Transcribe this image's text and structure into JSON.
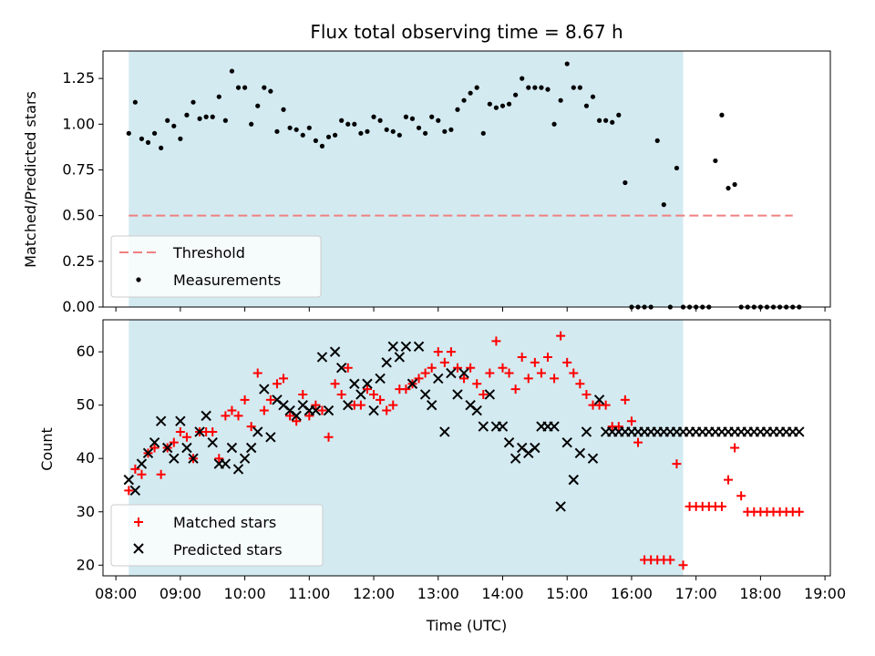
{
  "chart_data": [
    {
      "type": "scatter",
      "title": "Flux total observing time = 8.67 h",
      "ylabel": "Matched/Predicted stars",
      "xlim": [
        "07:48",
        "19:05"
      ],
      "ylim": [
        0,
        1.4
      ],
      "yticks": [
        0,
        0.25,
        0.5,
        0.75,
        1.0,
        1.25
      ],
      "ytick_labels": [
        "0.00",
        "0.25",
        "0.50",
        "0.75",
        "1.00",
        "1.25"
      ],
      "shaded_interval": [
        "08:12",
        "16:48"
      ],
      "shade_color": "#d3eaf1",
      "legend_position": "lower-left",
      "series": [
        {
          "name": "Threshold",
          "kind": "dashed-line",
          "color": "#f08080",
          "x": [
            "08:12",
            "18:30"
          ],
          "y": [
            0.5,
            0.5
          ]
        },
        {
          "name": "Measurements",
          "kind": "dot",
          "color": "#000000",
          "x": [
            "08:12",
            "08:18",
            "08:24",
            "08:30",
            "08:36",
            "08:42",
            "08:48",
            "08:54",
            "09:00",
            "09:06",
            "09:12",
            "09:18",
            "09:24",
            "09:30",
            "09:36",
            "09:42",
            "09:48",
            "09:54",
            "10:00",
            "10:06",
            "10:12",
            "10:18",
            "10:24",
            "10:30",
            "10:36",
            "10:42",
            "10:48",
            "10:54",
            "11:00",
            "11:06",
            "11:12",
            "11:18",
            "11:24",
            "11:30",
            "11:36",
            "11:42",
            "11:48",
            "11:54",
            "12:00",
            "12:06",
            "12:12",
            "12:18",
            "12:24",
            "12:30",
            "12:36",
            "12:42",
            "12:48",
            "12:54",
            "13:00",
            "13:06",
            "13:12",
            "13:18",
            "13:24",
            "13:30",
            "13:36",
            "13:42",
            "13:48",
            "13:54",
            "14:00",
            "14:06",
            "14:12",
            "14:18",
            "14:24",
            "14:30",
            "14:36",
            "14:42",
            "14:48",
            "14:54",
            "15:00",
            "15:06",
            "15:12",
            "15:18",
            "15:24",
            "15:30",
            "15:36",
            "15:42",
            "15:48",
            "15:54",
            "16:00",
            "16:06",
            "16:12",
            "16:18",
            "16:24",
            "16:30",
            "16:36",
            "16:42",
            "16:48",
            "16:54",
            "17:00",
            "17:06",
            "17:12",
            "17:18",
            "17:24",
            "17:30",
            "17:36",
            "17:42",
            "17:48",
            "17:54",
            "18:00",
            "18:06",
            "18:12",
            "18:18",
            "18:24",
            "18:30",
            "18:36"
          ],
          "y": [
            0.95,
            1.12,
            0.92,
            0.9,
            0.95,
            0.87,
            1.02,
            0.99,
            0.92,
            1.05,
            1.12,
            1.03,
            1.04,
            1.04,
            1.15,
            1.02,
            1.29,
            1.2,
            1.2,
            1.0,
            1.1,
            1.2,
            1.18,
            0.96,
            1.08,
            0.98,
            0.97,
            0.94,
            0.98,
            0.91,
            0.88,
            0.93,
            0.94,
            1.02,
            1.0,
            1.0,
            0.95,
            0.96,
            1.04,
            1.02,
            0.97,
            0.96,
            0.94,
            1.04,
            1.03,
            0.98,
            0.95,
            1.04,
            1.02,
            0.96,
            0.97,
            1.08,
            1.13,
            1.17,
            1.2,
            0.95,
            1.11,
            1.09,
            1.1,
            1.11,
            1.16,
            1.25,
            1.2,
            1.2,
            1.2,
            1.19,
            1.0,
            1.13,
            1.33,
            1.2,
            1.2,
            1.1,
            1.15,
            1.02,
            1.02,
            1.01,
            1.05,
            0.68,
            0.0,
            0.0,
            0.0,
            0.0,
            0.91,
            0.56,
            0.0,
            0.76,
            0.0,
            0.0,
            0.0,
            0.0,
            0.0,
            0.8,
            1.05,
            0.65,
            0.67,
            0.0,
            0.0,
            0.0,
            0.0,
            0.0,
            0.0,
            0.0,
            0.0,
            0.0,
            0.0
          ]
        }
      ]
    },
    {
      "type": "scatter",
      "xlabel": "Time (UTC)",
      "ylabel": "Count",
      "xlim": [
        "07:48",
        "19:05"
      ],
      "ylim": [
        18,
        66
      ],
      "yticks": [
        20,
        30,
        40,
        50,
        60
      ],
      "xtick_labels": [
        "08:00",
        "09:00",
        "10:00",
        "11:00",
        "12:00",
        "13:00",
        "14:00",
        "15:00",
        "16:00",
        "17:00",
        "18:00",
        "19:00"
      ],
      "shaded_interval": [
        "08:12",
        "16:48"
      ],
      "shade_color": "#d3eaf1",
      "legend_position": "lower-left",
      "series": [
        {
          "name": "Matched stars",
          "kind": "plus",
          "color": "#ff0000",
          "x": [
            "08:12",
            "08:18",
            "08:24",
            "08:30",
            "08:36",
            "08:42",
            "08:48",
            "08:54",
            "09:00",
            "09:06",
            "09:12",
            "09:18",
            "09:24",
            "09:30",
            "09:36",
            "09:42",
            "09:48",
            "09:54",
            "10:00",
            "10:06",
            "10:12",
            "10:18",
            "10:24",
            "10:30",
            "10:36",
            "10:42",
            "10:48",
            "10:54",
            "11:00",
            "11:06",
            "11:12",
            "11:18",
            "11:24",
            "11:30",
            "11:36",
            "11:42",
            "11:48",
            "11:54",
            "12:00",
            "12:06",
            "12:12",
            "12:18",
            "12:24",
            "12:30",
            "12:36",
            "12:42",
            "12:48",
            "12:54",
            "13:00",
            "13:06",
            "13:12",
            "13:18",
            "13:24",
            "13:30",
            "13:36",
            "13:42",
            "13:48",
            "13:54",
            "14:00",
            "14:06",
            "14:12",
            "14:18",
            "14:24",
            "14:30",
            "14:36",
            "14:42",
            "14:48",
            "14:54",
            "15:00",
            "15:06",
            "15:12",
            "15:18",
            "15:24",
            "15:30",
            "15:36",
            "15:42",
            "15:48",
            "15:54",
            "16:00",
            "16:06",
            "16:12",
            "16:18",
            "16:24",
            "16:30",
            "16:36",
            "16:42",
            "16:48",
            "16:54",
            "17:00",
            "17:06",
            "17:12",
            "17:18",
            "17:24",
            "17:30",
            "17:36",
            "17:42",
            "17:48",
            "17:54",
            "18:00",
            "18:06",
            "18:12",
            "18:18",
            "18:24",
            "18:30",
            "18:36"
          ],
          "y": [
            34,
            38,
            37,
            41,
            42,
            37,
            42,
            43,
            45,
            44,
            40,
            45,
            45,
            45,
            40,
            48,
            49,
            48,
            51,
            46,
            56,
            49,
            51,
            54,
            55,
            48,
            47,
            52,
            48,
            50,
            49,
            44,
            54,
            52,
            57,
            50,
            50,
            53,
            52,
            51,
            49,
            50,
            53,
            53,
            54,
            55,
            56,
            57,
            60,
            58,
            60,
            57,
            55,
            57,
            54,
            52,
            56,
            62,
            57,
            56,
            53,
            59,
            55,
            58,
            56,
            59,
            55,
            63,
            58,
            56,
            54,
            52,
            50,
            50,
            50,
            46,
            46,
            51,
            47,
            43,
            21,
            21,
            21,
            21,
            21,
            39,
            20,
            31,
            31,
            31,
            31,
            31,
            31,
            36,
            42,
            33,
            30,
            30,
            30,
            30,
            30,
            30,
            30,
            30,
            30
          ]
        },
        {
          "name": "Predicted stars",
          "kind": "x",
          "color": "#000000",
          "x": [
            "08:12",
            "08:18",
            "08:24",
            "08:30",
            "08:36",
            "08:42",
            "08:48",
            "08:54",
            "09:00",
            "09:06",
            "09:12",
            "09:18",
            "09:24",
            "09:30",
            "09:36",
            "09:42",
            "09:48",
            "09:54",
            "10:00",
            "10:06",
            "10:12",
            "10:18",
            "10:24",
            "10:30",
            "10:36",
            "10:42",
            "10:48",
            "10:54",
            "11:00",
            "11:06",
            "11:12",
            "11:18",
            "11:24",
            "11:30",
            "11:36",
            "11:42",
            "11:48",
            "11:54",
            "12:00",
            "12:06",
            "12:12",
            "12:18",
            "12:24",
            "12:30",
            "12:36",
            "12:42",
            "12:48",
            "12:54",
            "13:00",
            "13:06",
            "13:12",
            "13:18",
            "13:24",
            "13:30",
            "13:36",
            "13:42",
            "13:48",
            "13:54",
            "14:00",
            "14:06",
            "14:12",
            "14:18",
            "14:24",
            "14:30",
            "14:36",
            "14:42",
            "14:48",
            "14:54",
            "15:00",
            "15:06",
            "15:12",
            "15:18",
            "15:24",
            "15:30",
            "15:36",
            "15:42",
            "15:48",
            "15:54",
            "16:00",
            "16:06",
            "16:12",
            "16:18",
            "16:24",
            "16:30",
            "16:36",
            "16:42",
            "16:48",
            "16:54",
            "17:00",
            "17:06",
            "17:12",
            "17:18",
            "17:24",
            "17:30",
            "17:36",
            "17:42",
            "17:48",
            "17:54",
            "18:00",
            "18:06",
            "18:12",
            "18:18",
            "18:24",
            "18:30",
            "18:36"
          ],
          "y": [
            36,
            34,
            39,
            41,
            43,
            47,
            42,
            40,
            47,
            42,
            40,
            45,
            48,
            43,
            39,
            39,
            42,
            38,
            40,
            42,
            45,
            53,
            44,
            51,
            50,
            49,
            48,
            50,
            49,
            49,
            59,
            49,
            60,
            57,
            50,
            54,
            52,
            54,
            49,
            55,
            58,
            61,
            59,
            61,
            54,
            61,
            52,
            50,
            55,
            45,
            56,
            52,
            56,
            50,
            49,
            46,
            52,
            46,
            46,
            43,
            40,
            42,
            41,
            42,
            46,
            46,
            46,
            31,
            43,
            36,
            41,
            45,
            40,
            51,
            45,
            45,
            45,
            45,
            45,
            45,
            45,
            45,
            45,
            45,
            45,
            45,
            45,
            45,
            45,
            45,
            45,
            45,
            45,
            45,
            45,
            45,
            45,
            45,
            45,
            45,
            45,
            45,
            45,
            45,
            45
          ]
        }
      ]
    }
  ]
}
